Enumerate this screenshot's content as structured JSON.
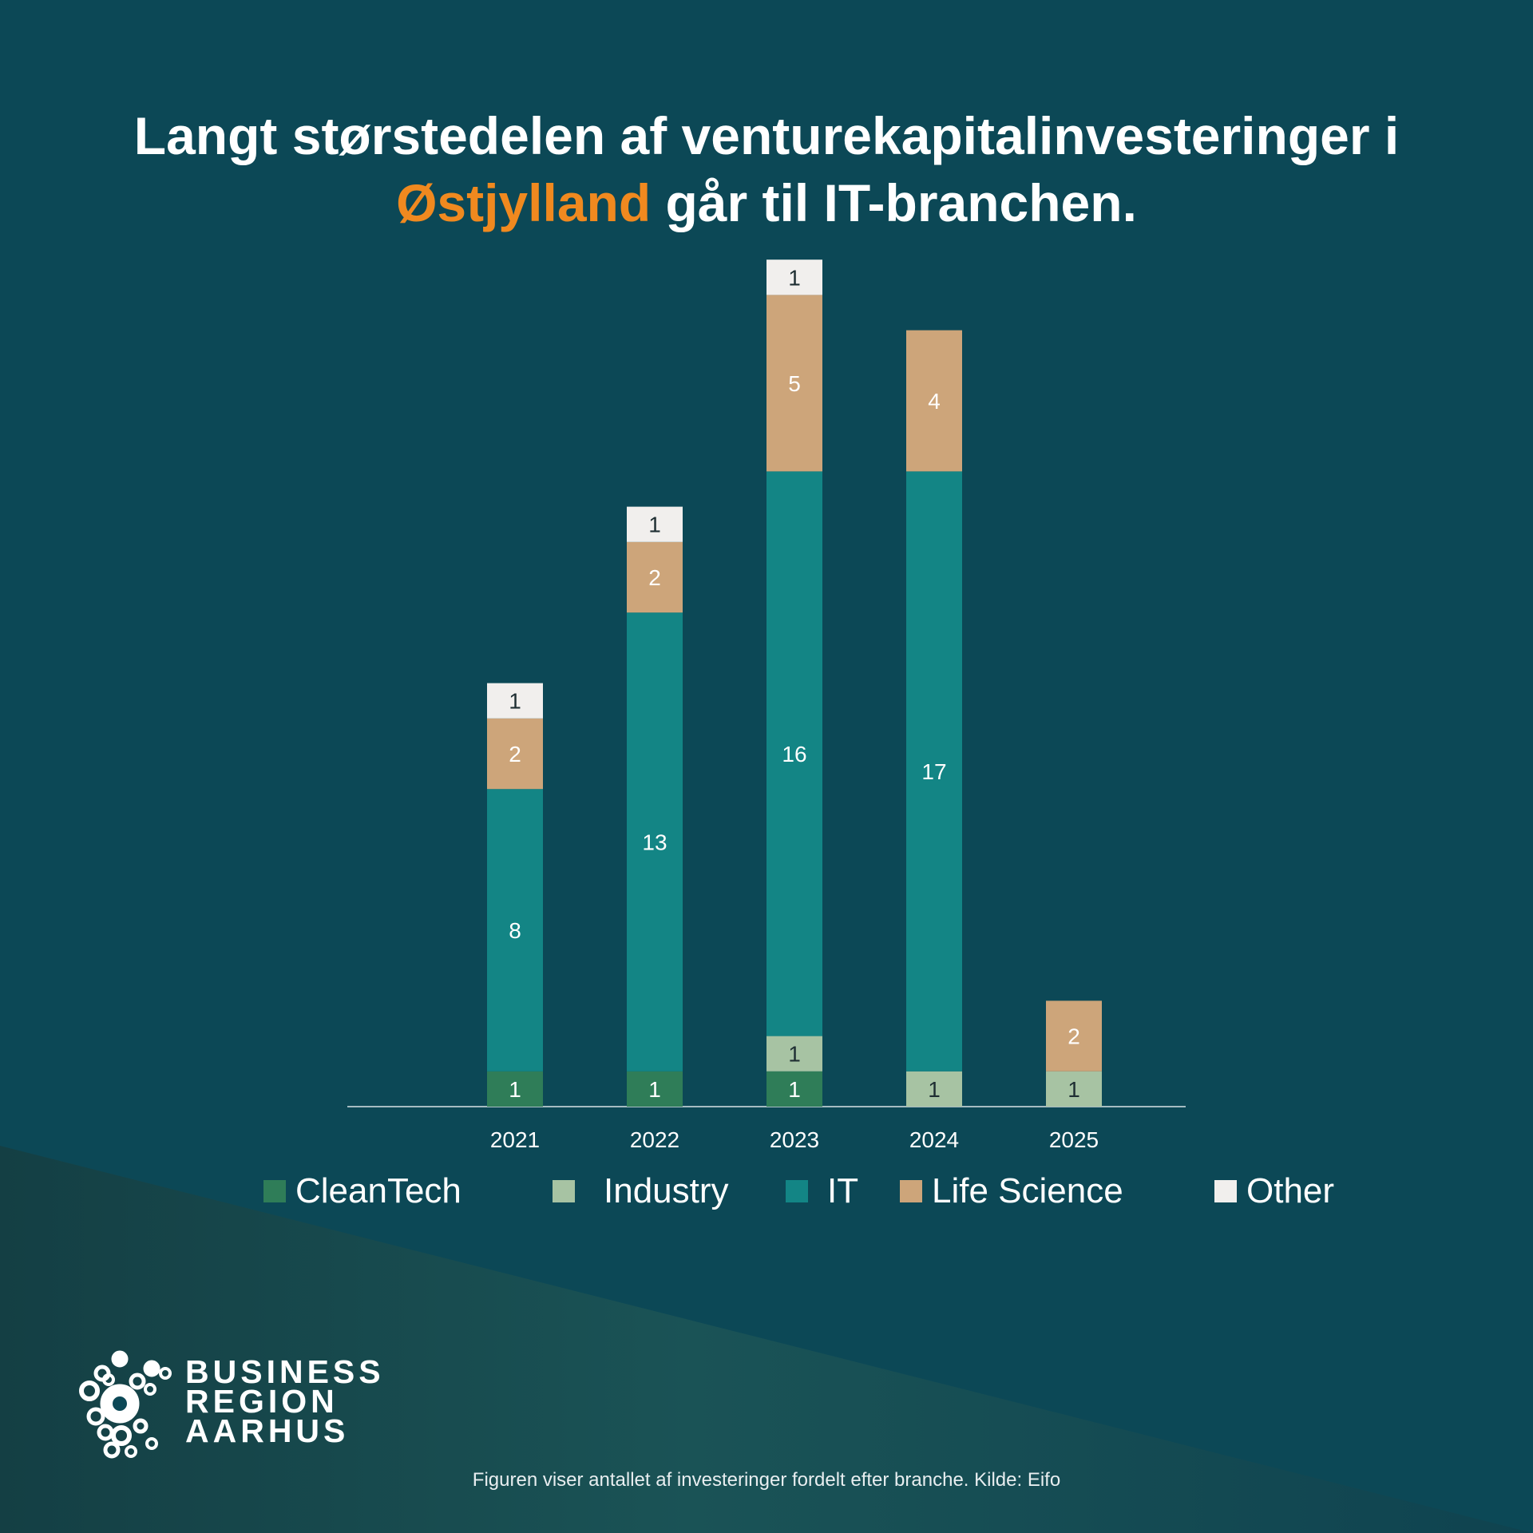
{
  "title": {
    "line1": "Langt størstedelen af venturekapitalinvesteringer i",
    "highlight": "Østjylland",
    "line2_rest": " går til IT-branchen."
  },
  "colors": {
    "background": "#0c4856",
    "highlight": "#f0891f",
    "CleanTech": "#2f7d58",
    "Industry": "#a7c3a3",
    "IT": "#138585",
    "Life Science": "#cda57a",
    "Other": "#f1efed"
  },
  "chart_data": {
    "type": "bar",
    "stacked": true,
    "categories": [
      "2021",
      "2022",
      "2023",
      "2024",
      "2025"
    ],
    "series": [
      {
        "name": "CleanTech",
        "values": [
          1,
          1,
          1,
          0,
          0
        ]
      },
      {
        "name": "Industry",
        "values": [
          0,
          0,
          1,
          1,
          1
        ]
      },
      {
        "name": "IT",
        "values": [
          8,
          13,
          16,
          17,
          0
        ]
      },
      {
        "name": "Life Science",
        "values": [
          2,
          2,
          5,
          4,
          2
        ]
      },
      {
        "name": "Other",
        "values": [
          1,
          1,
          1,
          0,
          0
        ]
      }
    ],
    "ylim": [
      0,
      24
    ],
    "grid": false,
    "legend_position": "bottom"
  },
  "legend": {
    "items": [
      "CleanTech",
      "Industry",
      "IT",
      "Life Science",
      "Other"
    ]
  },
  "logo": {
    "lines": [
      "BUSINESS",
      "REGION",
      "AARHUS"
    ],
    "icon": "circles-cluster-icon"
  },
  "footnote": "Figuren viser antallet af investeringer fordelt efter branche. Kilde: Eifo"
}
